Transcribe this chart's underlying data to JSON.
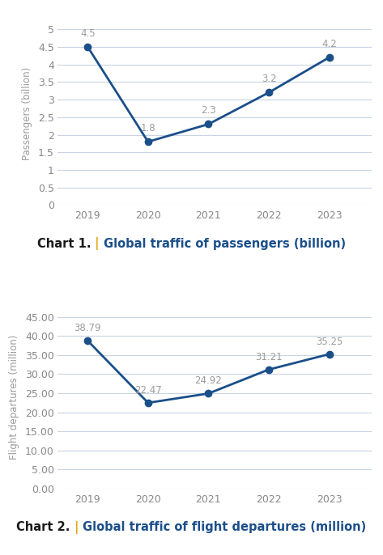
{
  "years": [
    2019,
    2020,
    2021,
    2022,
    2023
  ],
  "chart1": {
    "values": [
      4.5,
      1.8,
      2.3,
      3.2,
      4.2
    ],
    "ylabel": "Passengers (billion)",
    "yticks": [
      0,
      0.5,
      1,
      1.5,
      2,
      2.5,
      3,
      3.5,
      4,
      4.5,
      5
    ],
    "ylim": [
      0,
      5.2
    ],
    "title_bold": "Chart 1.",
    "title_pipe": " | ",
    "title_rest": "Global traffic of passengers (billion)"
  },
  "chart2": {
    "values": [
      38.79,
      22.47,
      24.92,
      31.21,
      35.25
    ],
    "ylabel": "Flight departures (million)",
    "yticks": [
      0,
      5,
      10,
      15,
      20,
      25,
      30,
      35,
      40,
      45
    ],
    "ylim": [
      0,
      48
    ],
    "title_bold": "Chart 2.",
    "title_pipe": " | ",
    "title_rest": "Global traffic of flight departures (million)"
  },
  "line_color": "#1B4F8A",
  "marker_color": "#1B4F8A",
  "annotation_color": "#9b9b9b",
  "title_bold_color": "#1a1a1a",
  "title_pipe_color": "#e6a817",
  "title_rest_color": "#1B4F8A",
  "grid_color": "#c8d4e4",
  "tick_color": "#888888",
  "bg_color": "#ffffff",
  "annotation_fontsize": 8.5,
  "axis_label_fontsize": 8.5,
  "tick_fontsize": 9,
  "title_fontsize": 10.5
}
